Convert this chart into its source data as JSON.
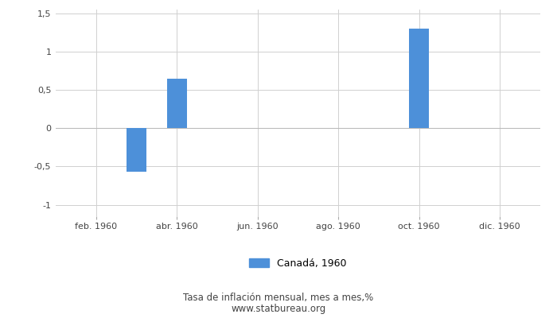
{
  "bar_positions": [
    3,
    4,
    10
  ],
  "bar_values": [
    -0.57,
    0.65,
    1.3
  ],
  "bar_width": 0.5,
  "bar_color": "#4d90d9",
  "xtick_labels": [
    "feb. 1960",
    "abr. 1960",
    "jun. 1960",
    "ago. 1960",
    "oct. 1960",
    "dic. 1960"
  ],
  "xtick_positions": [
    2,
    4,
    6,
    8,
    10,
    12
  ],
  "ylim": [
    -1.15,
    1.55
  ],
  "yticks": [
    -1,
    -0.5,
    0,
    0.5,
    1,
    1.5
  ],
  "ytick_labels": [
    "-1",
    "-0,5",
    "0",
    "0,5",
    "1",
    "1,5"
  ],
  "legend_label": "Canadá, 1960",
  "subtitle1": "Tasa de inflación mensual, mes a mes,%",
  "subtitle2": "www.statbureau.org",
  "grid_color": "#d0d0d0",
  "background_color": "#ffffff",
  "tick_label_color": "#444444",
  "subtitle_color": "#444444"
}
